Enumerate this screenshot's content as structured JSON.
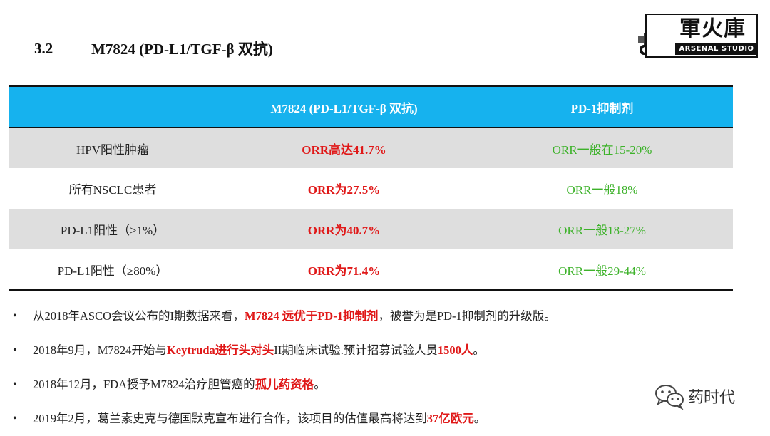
{
  "header": {
    "section_number": "3.2",
    "section_title": "M7824 (PD-L1/TGF-β 双抗)"
  },
  "logo": {
    "main_text": "軍火庫",
    "sub_text": "ARSENAL STUDIO"
  },
  "table": {
    "columns": [
      "",
      "M7824 (PD-L1/TGF-β 双抗)",
      "PD-1抑制剂"
    ],
    "rows": [
      {
        "label": "HPV阳性肿瘤",
        "m7824": "ORR高达41.7%",
        "pd1": "ORR一般在15-20%"
      },
      {
        "label": "所有NSCLC患者",
        "m7824": "ORR为27.5%",
        "pd1": "ORR一般18%"
      },
      {
        "label": "PD-L1阳性（≥1%）",
        "m7824": "ORR为40.7%",
        "pd1": "ORR一般18-27%"
      },
      {
        "label": "PD-L1阳性（≥80%）",
        "m7824": "ORR为71.4%",
        "pd1": "ORR一般29-44%"
      }
    ]
  },
  "bullets": [
    {
      "dot": "•",
      "parts": [
        {
          "text": "从2018年ASCO会议公布的I期数据来看，",
          "hl": false
        },
        {
          "text": "M7824 远优于PD-1抑制剂",
          "hl": true
        },
        {
          "text": "，被誉为是PD-1抑制剂的升级版。",
          "hl": false
        }
      ]
    },
    {
      "dot": "•",
      "parts": [
        {
          "text": "2018年9月，M7824开始与",
          "hl": false
        },
        {
          "text": "Keytruda进行头对头",
          "hl": true
        },
        {
          "text": "II期临床试验.预计招募试验人员",
          "hl": false
        },
        {
          "text": "1500人",
          "hl": true
        },
        {
          "text": "。",
          "hl": false
        }
      ]
    },
    {
      "dot": "•",
      "parts": [
        {
          "text": "2018年12月，FDA授予M7824治疗胆管癌的",
          "hl": false
        },
        {
          "text": "孤儿药资格",
          "hl": true
        },
        {
          "text": "。",
          "hl": false
        }
      ]
    },
    {
      "dot": "•",
      "parts": [
        {
          "text": "2019年2月，葛兰素史克与德国默克宣布进行合作，该项目的估值最高将达到",
          "hl": false
        },
        {
          "text": "37亿欧元",
          "hl": true
        },
        {
          "text": "。",
          "hl": false
        }
      ]
    }
  ],
  "watermark": {
    "icon": "wechat-icon",
    "text": "药时代"
  },
  "colors": {
    "header_blue": "#16b2ee",
    "highlight_red": "#e01818",
    "pd1_green": "#3db22a",
    "row_shade": "#dedede"
  }
}
